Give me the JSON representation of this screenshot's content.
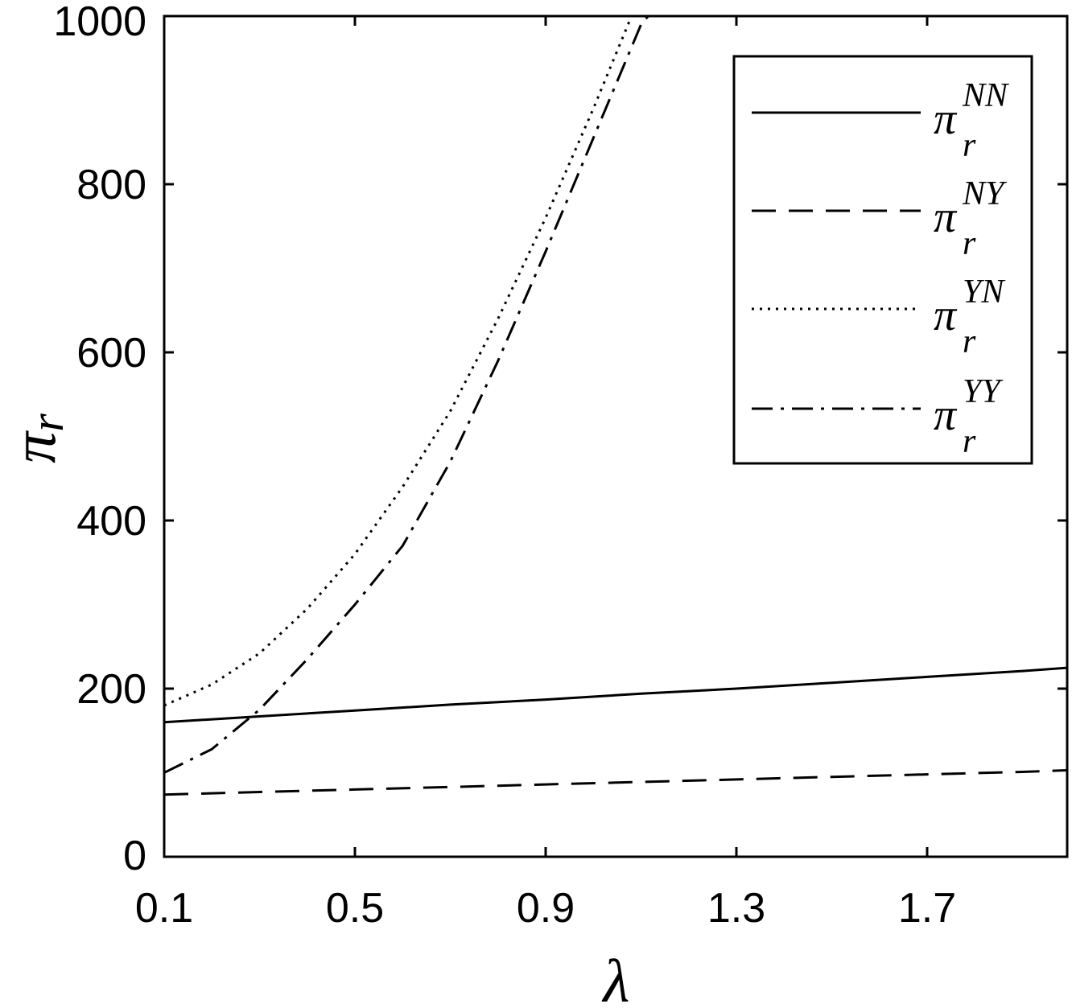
{
  "chart_data": {
    "type": "line",
    "xlabel": "λ",
    "ylabel_main": "π",
    "ylabel_sub": "r",
    "xlim": [
      0.1,
      2.0
    ],
    "ylim": [
      0,
      1000
    ],
    "x_ticks": [
      0.1,
      0.5,
      0.9,
      1.3,
      1.7
    ],
    "x_tick_labels": [
      "0.1",
      "0.5",
      "0.9",
      "1.3",
      "1.7"
    ],
    "y_ticks": [
      0,
      200,
      400,
      600,
      800,
      1000
    ],
    "y_tick_labels": [
      "0",
      "200",
      "400",
      "600",
      "800",
      "1000"
    ],
    "grid": false,
    "legend_position": "top-right",
    "series": [
      {
        "name": "π_r^NN",
        "label_base": "π",
        "label_sub": "r",
        "label_sup": "NN",
        "style": "solid",
        "x": [
          0.1,
          0.3,
          0.5,
          0.7,
          0.9,
          1.1,
          1.3,
          1.5,
          1.7,
          1.9,
          2.0
        ],
        "y": [
          160,
          167,
          174,
          181,
          187,
          194,
          200,
          207,
          214,
          221,
          225
        ]
      },
      {
        "name": "π_r^NY",
        "label_base": "π",
        "label_sub": "r",
        "label_sup": "NY",
        "style": "dashed",
        "x": [
          0.1,
          0.3,
          0.5,
          0.7,
          0.9,
          1.1,
          1.3,
          1.5,
          1.7,
          1.9,
          2.0
        ],
        "y": [
          74,
          77,
          80,
          83,
          86,
          89,
          92,
          95,
          98,
          101,
          103
        ]
      },
      {
        "name": "π_r^YN",
        "label_base": "π",
        "label_sub": "r",
        "label_sup": "YN",
        "style": "dotted",
        "x": [
          0.1,
          0.2,
          0.3,
          0.4,
          0.5,
          0.6,
          0.7,
          0.8,
          0.9,
          1.0,
          1.08
        ],
        "y": [
          180,
          205,
          242,
          295,
          360,
          440,
          530,
          640,
          760,
          890,
          1000
        ]
      },
      {
        "name": "π_r^YY",
        "label_base": "π",
        "label_sub": "r",
        "label_sup": "YY",
        "style": "dashdot",
        "x": [
          0.1,
          0.2,
          0.3,
          0.4,
          0.5,
          0.6,
          0.7,
          0.8,
          0.9,
          1.0,
          1.1,
          1.115
        ],
        "y": [
          100,
          128,
          175,
          235,
          300,
          370,
          470,
          590,
          720,
          855,
          990,
          1000
        ]
      }
    ]
  }
}
